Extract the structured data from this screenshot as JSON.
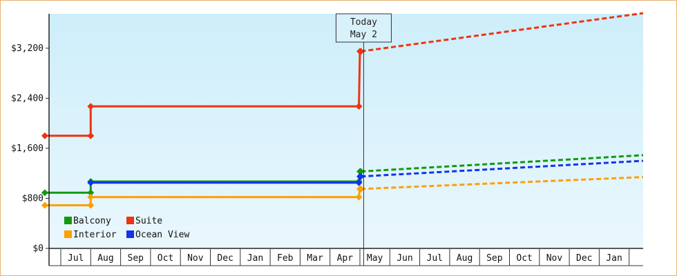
{
  "chart_data": {
    "type": "line",
    "title": "",
    "xlabel": "",
    "ylabel": "",
    "x_ticks": [
      "Jul",
      "Aug",
      "Sep",
      "Oct",
      "Nov",
      "Dec",
      "Jan",
      "Feb",
      "Mar",
      "Apr",
      "May",
      "Jun",
      "Jul",
      "Aug",
      "Sep",
      "Oct",
      "Nov",
      "Dec",
      "Jan"
    ],
    "y_ticks": [
      "$0",
      "$800",
      "$1,600",
      "$2,400",
      "$3,200"
    ],
    "ylim": [
      0,
      3750
    ],
    "today_marker": {
      "line1": "Today",
      "line2": "May 2"
    },
    "legend_position": "bottom-left",
    "grid": false,
    "series": [
      {
        "name": "Balcony",
        "color": "#119911",
        "history": [
          [
            "Jun 15",
            890
          ],
          [
            "Aug 1",
            890
          ],
          [
            "Aug 1",
            1070
          ],
          [
            "Apr 30",
            1070
          ],
          [
            "May 1",
            1230
          ]
        ],
        "forecast": [
          [
            "May 2",
            1230
          ],
          [
            "Feb 15",
            1490
          ]
        ]
      },
      {
        "name": "Suite",
        "color": "#ee3311",
        "history": [
          [
            "Jun 15",
            1800
          ],
          [
            "Aug 1",
            1800
          ],
          [
            "Aug 1",
            2270
          ],
          [
            "Apr 30",
            2270
          ],
          [
            "May 1",
            3150
          ]
        ],
        "forecast": [
          [
            "May 2",
            3150
          ],
          [
            "Feb 15",
            3760
          ]
        ]
      },
      {
        "name": "Interior",
        "color": "#ff9f00",
        "history": [
          [
            "Jun 15",
            690
          ],
          [
            "Aug 1",
            690
          ],
          [
            "Aug 1",
            820
          ],
          [
            "Apr 30",
            820
          ],
          [
            "May 1",
            950
          ]
        ],
        "forecast": [
          [
            "May 2",
            950
          ],
          [
            "Feb 15",
            1140
          ]
        ]
      },
      {
        "name": "Ocean View",
        "color": "#1133ee",
        "history": [
          [
            "Aug 1",
            1050
          ],
          [
            "Apr 30",
            1050
          ],
          [
            "May 1",
            1150
          ]
        ],
        "forecast": [
          [
            "May 2",
            1150
          ],
          [
            "Feb 15",
            1400
          ]
        ]
      }
    ]
  }
}
